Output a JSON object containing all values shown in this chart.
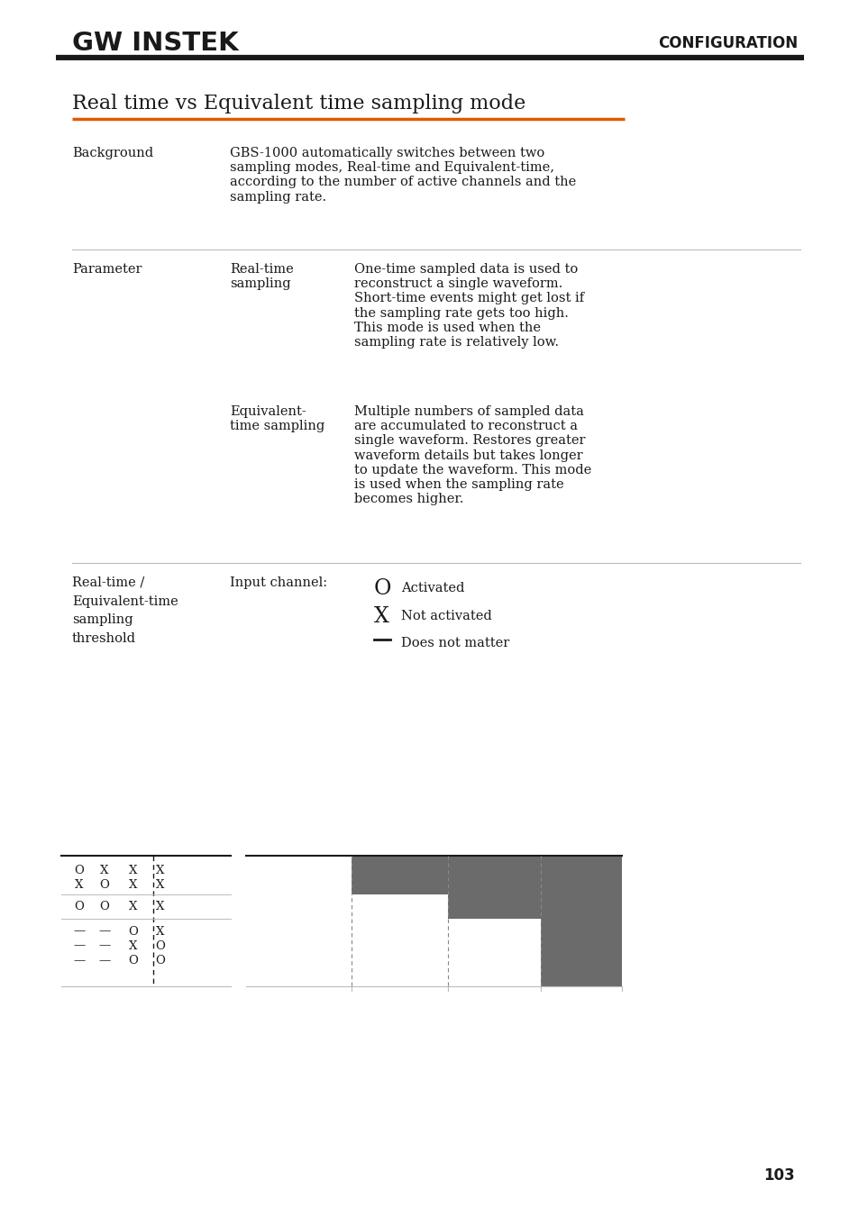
{
  "bg_color": "#ffffff",
  "header_logo_text": "GW INSTEK",
  "header_right_text": "CONFIGURATION",
  "section_title": "Real time vs Equivalent time sampling mode",
  "section_title_underline_color": "#e05a00",
  "bg_row1_col1": "Background",
  "bg_row1_col3": "GBS-1000 automatically switches between two\nsampling modes, Real-time and Equivalent-time,\naccording to the number of active channels and the\nsampling rate.",
  "param_col1": "Parameter",
  "rt_col2": "Real-time\nsampling",
  "rt_col3": "One-time sampled data is used to\nreconstruct a single waveform.\nShort-time events might get lost if\nthe sampling rate gets too high.\nThis mode is used when the\nsampling rate is relatively low.",
  "et_col2": "Equivalent-\ntime sampling",
  "et_col3": "Multiple numbers of sampled data\nare accumulated to reconstruct a\nsingle waveform. Restores greater\nwaveform details but takes longer\nto update the waveform. This mode\nis used when the sampling rate\nbecomes higher.",
  "thresh_col1": "Real-time /\nEquivalent-time\nsampling\nthreshold",
  "thresh_col2": "Input channel:",
  "legend_O": "Activated",
  "legend_X": "Not activated",
  "legend_dash": "Does not matter",
  "table_rows": [
    [
      "O",
      "X",
      "X",
      "X"
    ],
    [
      "X",
      "O",
      "X",
      "X"
    ],
    [
      "O",
      "O",
      "X",
      "X"
    ],
    [
      "—",
      "—",
      "O",
      "X"
    ],
    [
      "—",
      "—",
      "X",
      "O"
    ],
    [
      "—",
      "—",
      "O",
      "O"
    ]
  ],
  "bar_color": "#6b6b6b",
  "page_number": "103",
  "divider_color": "#bbbbbb"
}
